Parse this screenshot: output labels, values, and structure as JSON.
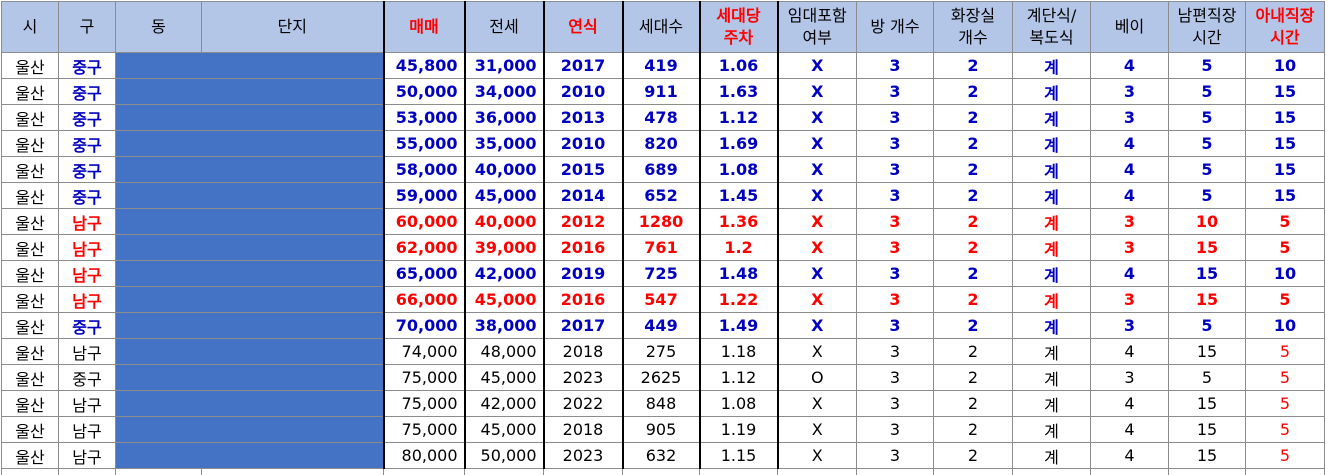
{
  "headers": [
    {
      "l1": "시",
      "l2": ""
    },
    {
      "l1": "구",
      "l2": ""
    },
    {
      "l1": "동",
      "l2": ""
    },
    {
      "l1": "단지",
      "l2": ""
    },
    {
      "l1": "매매",
      "l2": ""
    },
    {
      "l1": "전세",
      "l2": ""
    },
    {
      "l1": "연식",
      "l2": ""
    },
    {
      "l1": "세대수",
      "l2": ""
    },
    {
      "l1": "세대당",
      "l2": "주차"
    },
    {
      "l1": "임대포함",
      "l2": "여부"
    },
    {
      "l1": "방 개수",
      "l2": ""
    },
    {
      "l1": "화장실",
      "l2": "개수"
    },
    {
      "l1": "계단식/",
      "l2": "복도식"
    },
    {
      "l1": "베이",
      "l2": ""
    },
    {
      "l1": "남편직장",
      "l2": "시간"
    },
    {
      "l1": "아내직장",
      "l2": "시간"
    }
  ],
  "rows": [
    {
      "style": "blue",
      "city": "울산",
      "gu": "중구",
      "sale": "45,800",
      "jeonse": "31,000",
      "year": "2017",
      "units": "419",
      "parking": "1.06",
      "rental": "X",
      "rooms": "3",
      "baths": "2",
      "type": "계",
      "bay": "4",
      "husband": "5",
      "wife": "10"
    },
    {
      "style": "blue",
      "city": "울산",
      "gu": "중구",
      "sale": "50,000",
      "jeonse": "34,000",
      "year": "2010",
      "units": "911",
      "parking": "1.63",
      "rental": "X",
      "rooms": "3",
      "baths": "2",
      "type": "계",
      "bay": "3",
      "husband": "5",
      "wife": "15"
    },
    {
      "style": "blue",
      "city": "울산",
      "gu": "중구",
      "sale": "53,000",
      "jeonse": "36,000",
      "year": "2013",
      "units": "478",
      "parking": "1.12",
      "rental": "X",
      "rooms": "3",
      "baths": "2",
      "type": "계",
      "bay": "3",
      "husband": "5",
      "wife": "15"
    },
    {
      "style": "blue",
      "city": "울산",
      "gu": "중구",
      "sale": "55,000",
      "jeonse": "35,000",
      "year": "2010",
      "units": "820",
      "parking": "1.69",
      "rental": "X",
      "rooms": "3",
      "baths": "2",
      "type": "계",
      "bay": "4",
      "husband": "5",
      "wife": "15"
    },
    {
      "style": "blue",
      "city": "울산",
      "gu": "중구",
      "sale": "58,000",
      "jeonse": "40,000",
      "year": "2015",
      "units": "689",
      "parking": "1.08",
      "rental": "X",
      "rooms": "3",
      "baths": "2",
      "type": "계",
      "bay": "4",
      "husband": "5",
      "wife": "15"
    },
    {
      "style": "blue",
      "city": "울산",
      "gu": "중구",
      "sale": "59,000",
      "jeonse": "45,000",
      "year": "2014",
      "units": "652",
      "parking": "1.45",
      "rental": "X",
      "rooms": "3",
      "baths": "2",
      "type": "계",
      "bay": "4",
      "husband": "5",
      "wife": "15"
    },
    {
      "style": "red",
      "city": "울산",
      "gu": "남구",
      "sale": "60,000",
      "jeonse": "40,000",
      "year": "2012",
      "units": "1280",
      "parking": "1.36",
      "rental": "X",
      "rooms": "3",
      "baths": "2",
      "type": "계",
      "bay": "3",
      "husband": "10",
      "wife": "5"
    },
    {
      "style": "red",
      "city": "울산",
      "gu": "남구",
      "sale": "62,000",
      "jeonse": "39,000",
      "year": "2016",
      "units": "761",
      "parking": "1.2",
      "rental": "X",
      "rooms": "3",
      "baths": "2",
      "type": "계",
      "bay": "3",
      "husband": "15",
      "wife": "5"
    },
    {
      "style": "blue",
      "gustyle": "red",
      "city": "울산",
      "gu": "남구",
      "sale": "65,000",
      "jeonse": "42,000",
      "year": "2019",
      "units": "725",
      "parking": "1.48",
      "rental": "X",
      "rooms": "3",
      "baths": "2",
      "type": "계",
      "bay": "4",
      "husband": "15",
      "wife": "10"
    },
    {
      "style": "red",
      "city": "울산",
      "gu": "남구",
      "sale": "66,000",
      "jeonse": "45,000",
      "year": "2016",
      "units": "547",
      "parking": "1.22",
      "rental": "X",
      "rooms": "3",
      "baths": "2",
      "type": "계",
      "bay": "3",
      "husband": "15",
      "wife": "5"
    },
    {
      "style": "blue",
      "city": "울산",
      "gu": "중구",
      "sale": "70,000",
      "jeonse": "38,000",
      "year": "2017",
      "units": "449",
      "parking": "1.49",
      "rental": "X",
      "rooms": "3",
      "baths": "2",
      "type": "계",
      "bay": "3",
      "husband": "5",
      "wife": "10"
    },
    {
      "style": "plain",
      "city": "울산",
      "gu": "남구",
      "sale": "74,000",
      "jeonse": "48,000",
      "year": "2018",
      "units": "275",
      "parking": "1.18",
      "rental": "X",
      "rooms": "3",
      "baths": "2",
      "type": "계",
      "bay": "4",
      "husband": "15",
      "wife": "5"
    },
    {
      "style": "plain",
      "city": "울산",
      "gu": "중구",
      "sale": "75,000",
      "jeonse": "45,000",
      "year": "2023",
      "units": "2625",
      "parking": "1.12",
      "rental": "O",
      "rooms": "3",
      "baths": "2",
      "type": "계",
      "bay": "3",
      "husband": "5",
      "wife": "5"
    },
    {
      "style": "plain",
      "city": "울산",
      "gu": "남구",
      "sale": "75,000",
      "jeonse": "42,000",
      "year": "2022",
      "units": "848",
      "parking": "1.08",
      "rental": "X",
      "rooms": "3",
      "baths": "2",
      "type": "계",
      "bay": "4",
      "husband": "15",
      "wife": "5"
    },
    {
      "style": "plain",
      "city": "울산",
      "gu": "남구",
      "sale": "75,000",
      "jeonse": "45,000",
      "year": "2018",
      "units": "905",
      "parking": "1.19",
      "rental": "X",
      "rooms": "3",
      "baths": "2",
      "type": "계",
      "bay": "4",
      "husband": "15",
      "wife": "5"
    },
    {
      "style": "plain",
      "city": "울산",
      "gu": "남구",
      "sale": "80,000",
      "jeonse": "50,000",
      "year": "2023",
      "units": "632",
      "parking": "1.15",
      "rental": "X",
      "rooms": "3",
      "baths": "2",
      "type": "계",
      "bay": "4",
      "husband": "15",
      "wife": "5"
    }
  ],
  "colors": {
    "header_bg": "#b4c6e7",
    "mask": "#4472c4",
    "blue_text": "#0000c0",
    "red_text": "#ff0000"
  }
}
